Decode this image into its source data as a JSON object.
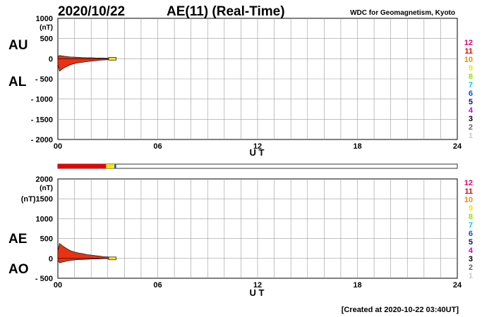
{
  "header": {
    "date": "2020/10/22",
    "title": "AE(11) (Real-Time)",
    "source": "WDC for Geomagnetism, Kyoto"
  },
  "footer": {
    "created": "[Created at 2020-10-22 03:40UT]"
  },
  "legend": {
    "items": [
      {
        "label": "12",
        "color": "#e8006e"
      },
      {
        "label": "11",
        "color": "#e80000"
      },
      {
        "label": "10",
        "color": "#f08c00"
      },
      {
        "label": "9",
        "color": "#f5e600"
      },
      {
        "label": "8",
        "color": "#8ce600"
      },
      {
        "label": "7",
        "color": "#00c8e6"
      },
      {
        "label": "6",
        "color": "#0050f0"
      },
      {
        "label": "5",
        "color": "#1e0096"
      },
      {
        "label": "4",
        "color": "#c800dc"
      },
      {
        "label": "3",
        "color": "#000000"
      },
      {
        "label": "2",
        "color": "#646464"
      },
      {
        "label": "1",
        "color": "#c8c8c8"
      }
    ]
  },
  "chart_data": [
    {
      "type": "area",
      "panel": "AU/AL",
      "series": [
        {
          "name": "AU",
          "x": [
            0,
            0.1,
            0.25,
            0.5,
            0.75,
            1,
            1.25,
            1.5,
            1.75,
            2,
            2.25,
            2.5,
            2.75,
            3,
            3.25,
            3.5
          ],
          "values": [
            50,
            80,
            70,
            55,
            45,
            40,
            35,
            30,
            25,
            25,
            20,
            18,
            15,
            12,
            10,
            8
          ]
        },
        {
          "name": "AL",
          "x": [
            0,
            0.1,
            0.25,
            0.5,
            0.75,
            1,
            1.25,
            1.5,
            1.75,
            2,
            2.25,
            2.5,
            2.75,
            3,
            3.25,
            3.5
          ],
          "values": [
            -150,
            -310,
            -260,
            -200,
            -150,
            -120,
            -100,
            -90,
            -70,
            -60,
            -50,
            -40,
            -30,
            -25,
            -20,
            -15
          ]
        }
      ],
      "ylabel": "(nT)",
      "xlabel": "U T",
      "ylim": [
        -2000,
        1000
      ],
      "yticks": [
        1000,
        500,
        0,
        -500,
        -1000,
        -1500,
        -2000
      ],
      "ytick_labels": [
        "1000",
        "500",
        "0",
        "- 500",
        "- 1000",
        "- 1500",
        "- 2000"
      ],
      "xlim": [
        0,
        24
      ],
      "xticks": [
        "00",
        "06",
        "12",
        "18",
        "24"
      ],
      "grid": true
    },
    {
      "type": "area",
      "panel": "AE/AO",
      "series": [
        {
          "name": "AE",
          "x": [
            0,
            0.1,
            0.25,
            0.5,
            0.75,
            1,
            1.25,
            1.5,
            1.75,
            2,
            2.25,
            2.5,
            2.75,
            3,
            3.25,
            3.5
          ],
          "values": [
            200,
            380,
            330,
            255,
            195,
            160,
            135,
            120,
            95,
            85,
            70,
            58,
            45,
            37,
            30,
            23
          ]
        },
        {
          "name": "AO",
          "x": [
            0,
            0.1,
            0.25,
            0.5,
            0.75,
            1,
            1.25,
            1.5,
            1.75,
            2,
            2.25,
            2.5,
            2.75,
            3,
            3.25,
            3.5
          ],
          "values": [
            -50,
            -115,
            -95,
            -72,
            -52,
            -40,
            -32,
            -30,
            -22,
            -17,
            -15,
            -11,
            -8,
            -6,
            -5,
            -4
          ]
        }
      ],
      "ylabel": "(nT)",
      "xlabel": "U T",
      "ylim": [
        -500,
        2000
      ],
      "yticks": [
        2000,
        1500,
        1000,
        500,
        0,
        -500
      ],
      "ytick_labels": [
        "2000",
        "(nT)1500",
        "1000",
        "500",
        "0",
        "- 500"
      ],
      "xlim": [
        0,
        24
      ],
      "xticks": [
        "00",
        "06",
        "12",
        "18",
        "24"
      ],
      "grid": true
    }
  ],
  "coverage": {
    "segments": [
      {
        "start": 0,
        "end": 2.9,
        "color": "#e80000"
      },
      {
        "start": 2.9,
        "end": 3.4,
        "color": "#f5e600"
      },
      {
        "start": 3.4,
        "end": 3.5,
        "color": "#0050f0"
      }
    ]
  }
}
